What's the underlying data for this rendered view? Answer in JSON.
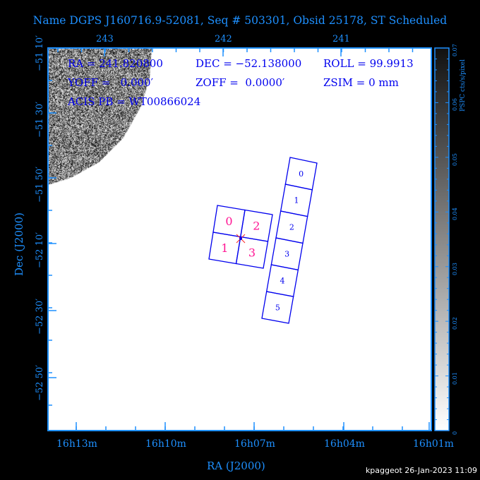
{
  "title": "Name DGPS J160716.9-52081, Seq # 503301, Obsid 25178, ST Scheduled",
  "info": {
    "ra": "RA = 241.820800",
    "dec": "DEC = −52.138000",
    "roll": "ROLL = 99.9913",
    "yoff": "YOFF =   0.000′",
    "zoff": "ZOFF =  0.0000′",
    "zsim": "ZSIM = 0 mm",
    "acis_pb": "ACIS PB = WT00866024"
  },
  "axes": {
    "x_label": "RA (J2000)",
    "y_label": "Dec (J2000)",
    "top_ticks": [
      "243",
      "242",
      "241"
    ],
    "bottom_ticks": [
      "16h13m",
      "16h10m",
      "16h07m",
      "16h04m",
      "16h01m"
    ],
    "left_ticks": [
      "−51 10′",
      "−51 30′",
      "−51 50′",
      "−52 10′",
      "−52 30′",
      "−52 50′"
    ]
  },
  "colorbar": {
    "label": "PSPC cts/s/pixel",
    "ticks": [
      "0",
      "0.01",
      "0.02",
      "0.03",
      "0.04",
      "0.05",
      "0.06",
      "0.07"
    ],
    "range": [
      0,
      0.07
    ]
  },
  "acis_i_chips": [
    "0",
    "2",
    "1",
    "3"
  ],
  "acis_s_chips": [
    "0",
    "1",
    "2",
    "3",
    "4",
    "5"
  ],
  "colors": {
    "axis": "#1e90ff",
    "chip_outline": "#0000ee",
    "acis_i_label": "#ff1493",
    "text": "#0000ee"
  },
  "footer": "kpaggeot 26-Jan-2023 11:09"
}
